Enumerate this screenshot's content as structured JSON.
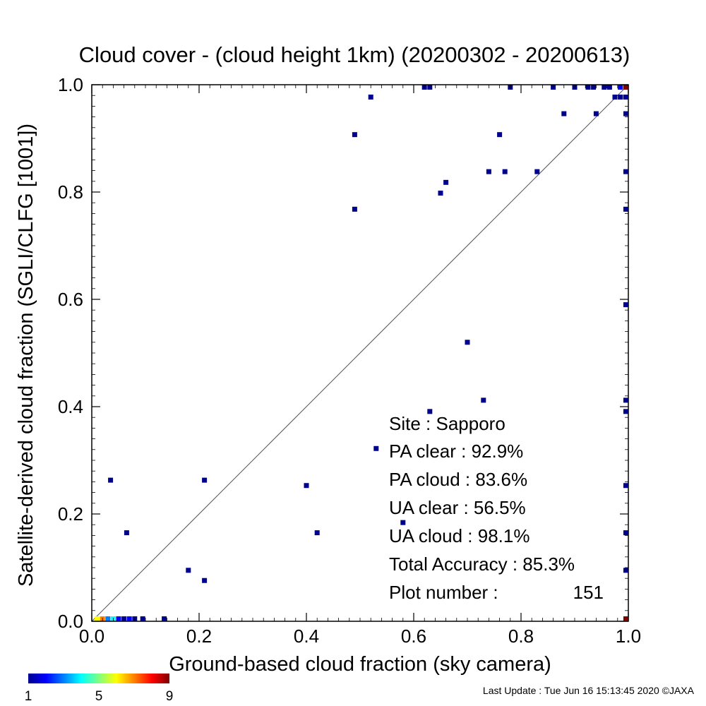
{
  "chart_data": {
    "type": "scatter",
    "title": "Cloud cover - (cloud height 1km)  (20200302 - 20200613)",
    "xlabel": "Ground-based cloud fraction (sky camera)",
    "ylabel": "Satellite-derived cloud fraction (SGLI/CLFG [1001])",
    "xlim": [
      0.0,
      1.0
    ],
    "ylim": [
      0.0,
      1.0
    ],
    "xticks": [
      "0.0",
      "0.2",
      "0.4",
      "0.6",
      "0.8",
      "1.0"
    ],
    "yticks": [
      "0.0",
      "0.2",
      "0.4",
      "0.6",
      "0.8",
      "1.0"
    ],
    "reference_line": "1:1 diagonal",
    "grid": false,
    "colorbar": {
      "min_label": "1",
      "mid_label": "5",
      "max_label": "9",
      "quantity": "count"
    },
    "points": [
      {
        "x": 0.035,
        "y": 0.263,
        "count": 1
      },
      {
        "x": 0.065,
        "y": 0.165,
        "count": 1
      },
      {
        "x": 0.18,
        "y": 0.095,
        "count": 1
      },
      {
        "x": 0.21,
        "y": 0.076,
        "count": 1
      },
      {
        "x": 0.21,
        "y": 0.263,
        "count": 1
      },
      {
        "x": 0.4,
        "y": 0.253,
        "count": 1
      },
      {
        "x": 0.42,
        "y": 0.165,
        "count": 1
      },
      {
        "x": 0.49,
        "y": 0.907,
        "count": 1
      },
      {
        "x": 0.49,
        "y": 0.768,
        "count": 1
      },
      {
        "x": 0.52,
        "y": 0.977,
        "count": 1
      },
      {
        "x": 0.53,
        "y": 0.322,
        "count": 1
      },
      {
        "x": 0.58,
        "y": 0.184,
        "count": 1
      },
      {
        "x": 0.62,
        "y": 0.996,
        "count": 1
      },
      {
        "x": 0.63,
        "y": 0.996,
        "count": 1
      },
      {
        "x": 0.63,
        "y": 0.391,
        "count": 1
      },
      {
        "x": 0.65,
        "y": 0.798,
        "count": 1
      },
      {
        "x": 0.66,
        "y": 0.818,
        "count": 1
      },
      {
        "x": 0.7,
        "y": 0.52,
        "count": 1
      },
      {
        "x": 0.73,
        "y": 0.412,
        "count": 1
      },
      {
        "x": 0.74,
        "y": 0.838,
        "count": 1
      },
      {
        "x": 0.76,
        "y": 0.907,
        "count": 1
      },
      {
        "x": 0.77,
        "y": 0.838,
        "count": 1
      },
      {
        "x": 0.78,
        "y": 0.996,
        "count": 1
      },
      {
        "x": 0.83,
        "y": 0.838,
        "count": 1
      },
      {
        "x": 0.86,
        "y": 0.996,
        "count": 1
      },
      {
        "x": 0.88,
        "y": 0.946,
        "count": 1
      },
      {
        "x": 0.9,
        "y": 0.996,
        "count": 1
      },
      {
        "x": 0.925,
        "y": 0.996,
        "count": 1
      },
      {
        "x": 0.935,
        "y": 0.996,
        "count": 1
      },
      {
        "x": 0.94,
        "y": 0.946,
        "count": 1
      },
      {
        "x": 0.955,
        "y": 0.996,
        "count": 1
      },
      {
        "x": 0.965,
        "y": 0.996,
        "count": 1
      },
      {
        "x": 0.975,
        "y": 0.977,
        "count": 1
      },
      {
        "x": 0.985,
        "y": 0.996,
        "count": 2
      },
      {
        "x": 0.985,
        "y": 0.977,
        "count": 1
      },
      {
        "x": 0.995,
        "y": 0.977,
        "count": 1
      },
      {
        "x": 0.995,
        "y": 0.996,
        "count": 9
      },
      {
        "x": 1.0,
        "y": 0.946,
        "count": 1
      },
      {
        "x": 1.0,
        "y": 0.838,
        "count": 1
      },
      {
        "x": 1.0,
        "y": 0.768,
        "count": 1
      },
      {
        "x": 1.0,
        "y": 0.59,
        "count": 1
      },
      {
        "x": 1.0,
        "y": 0.412,
        "count": 1
      },
      {
        "x": 1.0,
        "y": 0.391,
        "count": 1
      },
      {
        "x": 1.0,
        "y": 0.253,
        "count": 1
      },
      {
        "x": 1.0,
        "y": 0.165,
        "count": 1
      },
      {
        "x": 1.0,
        "y": 0.095,
        "count": 1
      },
      {
        "x": 1.0,
        "y": 0.003,
        "count": 9
      },
      {
        "x": 0.01,
        "y": 0.003,
        "count": 6
      },
      {
        "x": 0.02,
        "y": 0.003,
        "count": 7
      },
      {
        "x": 0.03,
        "y": 0.003,
        "count": 3
      },
      {
        "x": 0.04,
        "y": 0.003,
        "count": 4
      },
      {
        "x": 0.05,
        "y": 0.003,
        "count": 2
      },
      {
        "x": 0.06,
        "y": 0.003,
        "count": 1
      },
      {
        "x": 0.07,
        "y": 0.003,
        "count": 2
      },
      {
        "x": 0.08,
        "y": 0.003,
        "count": 1
      },
      {
        "x": 0.095,
        "y": 0.003,
        "count": 1
      },
      {
        "x": 0.135,
        "y": 0.003,
        "count": 1
      }
    ]
  },
  "stats": {
    "site": "Site : Sapporo",
    "pa_clear": "PA clear :  92.9%",
    "pa_cloud": "PA cloud :  83.6%",
    "ua_clear": "UA clear :  56.5%",
    "ua_cloud": "UA cloud :  98.1%",
    "total_accuracy": "Total Accuracy :  85.3%",
    "plot_number_label": "Plot number :",
    "plot_number_value": "151"
  },
  "footer": {
    "last_update": "Last Update : Tue Jun 16 15:13:45 2020  ©JAXA"
  }
}
